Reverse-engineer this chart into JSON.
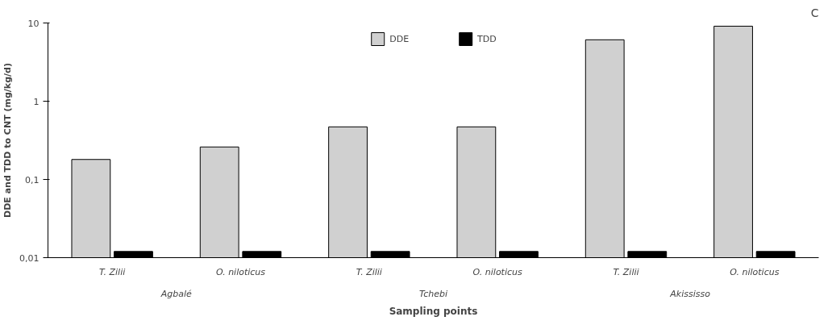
{
  "chart_data": {
    "type": "bar",
    "title": "C",
    "ylabel": "DDE and TDD to CNT (mg/kg/d)",
    "xlabel": "Sampling points",
    "categories": [
      "T. Zilii",
      "O. niloticus",
      "T. Zilii",
      "O. niloticus",
      "T. Zilii",
      "O. niloticus"
    ],
    "annotations": [
      "Agbalé",
      "Tchebi",
      "Akississo"
    ],
    "series": [
      {
        "name": "DDE",
        "color": "#d0d0d0",
        "values": [
          0.18,
          0.26,
          0.47,
          0.47,
          6.1,
          9.1
        ]
      },
      {
        "name": "TDD",
        "color": "#000000",
        "values": [
          0.012,
          0.012,
          0.012,
          0.012,
          0.012,
          0.012
        ]
      }
    ],
    "log": true,
    "ylim": [
      0.01,
      10
    ],
    "yticks": [
      {
        "value": 0.01,
        "label": "0,01"
      },
      {
        "value": 0.1,
        "label": "0,1"
      },
      1,
      10
    ],
    "grid": false,
    "legend": "top"
  }
}
